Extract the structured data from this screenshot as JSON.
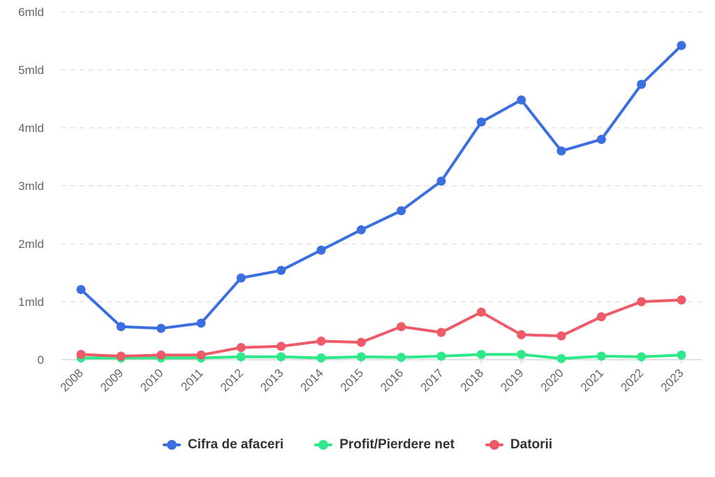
{
  "chart_data": {
    "type": "line",
    "x": [
      "2008",
      "2009",
      "2010",
      "2011",
      "2012",
      "2013",
      "2014",
      "2015",
      "2016",
      "2017",
      "2018",
      "2019",
      "2020",
      "2021",
      "2022",
      "2023"
    ],
    "ylim": [
      0,
      6000000000
    ],
    "y_ticks": [
      {
        "value": 0,
        "label": "0"
      },
      {
        "value": 1000000000,
        "label": "1mld"
      },
      {
        "value": 2000000000,
        "label": "2mld"
      },
      {
        "value": 3000000000,
        "label": "3mld"
      },
      {
        "value": 4000000000,
        "label": "4mld"
      },
      {
        "value": 5000000000,
        "label": "5mld"
      },
      {
        "value": 6000000000,
        "label": "6mld"
      }
    ],
    "grid": "horizontal-dashed",
    "legend_position": "bottom",
    "series": [
      {
        "name": "Cifra de afaceri",
        "color": "#3b6fe0",
        "values": [
          1210000000,
          570000000,
          540000000,
          630000000,
          1410000000,
          1540000000,
          1890000000,
          2240000000,
          2570000000,
          3080000000,
          4100000000,
          4480000000,
          3600000000,
          3800000000,
          4750000000,
          5420000000
        ]
      },
      {
        "name": "Profit/Pierdere net",
        "color": "#2ee88a",
        "values": [
          30000000,
          30000000,
          30000000,
          30000000,
          50000000,
          50000000,
          30000000,
          50000000,
          40000000,
          60000000,
          90000000,
          90000000,
          20000000,
          60000000,
          50000000,
          80000000
        ]
      },
      {
        "name": "Datorii",
        "color": "#ef5a68",
        "values": [
          90000000,
          60000000,
          80000000,
          80000000,
          210000000,
          230000000,
          320000000,
          300000000,
          570000000,
          470000000,
          820000000,
          430000000,
          410000000,
          740000000,
          1000000000,
          1030000000
        ]
      }
    ]
  }
}
